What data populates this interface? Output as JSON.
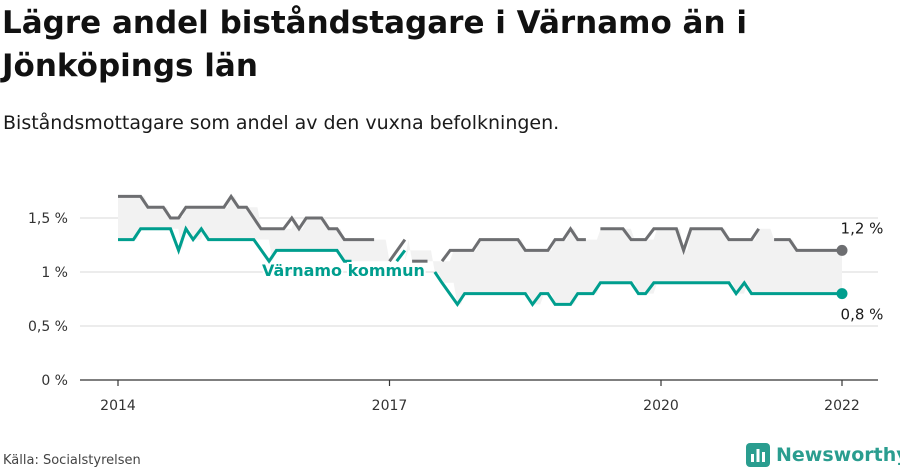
{
  "header": {
    "title": "Lägre andel biståndstagare i Värnamo än i Jönköpings län",
    "subtitle": "Biståndsmottagare som andel av den vuxna befolkningen."
  },
  "footer": {
    "source": "Källa: Socialstyrelsen",
    "brand_name": "Newsworthy",
    "brand_icon": "newsworthy-logo-icon"
  },
  "colors": {
    "lan": "#6d6e71",
    "varnamo": "#009e8e",
    "band": "#f2f2f2",
    "grid": "#d9d9d9"
  },
  "chart_data": {
    "type": "line",
    "title": "Lägre andel biståndstagare i Värnamo än i Jönköpings län",
    "subtitle": "Biståndsmottagare som andel av den vuxna befolkningen.",
    "xlabel": "",
    "ylabel": "",
    "ylim": [
      0,
      1.8
    ],
    "y_ticks": [
      {
        "value": 0,
        "label": "0 %"
      },
      {
        "value": 0.5,
        "label": "0,5 %"
      },
      {
        "value": 1,
        "label": "1 %"
      },
      {
        "value": 1.5,
        "label": "1,5 %"
      }
    ],
    "x_ticks": [
      {
        "value": 2014,
        "label": "2014"
      },
      {
        "value": 2017,
        "label": "2017"
      },
      {
        "value": 2020,
        "label": "2020"
      },
      {
        "value": 2022,
        "label": "2022"
      }
    ],
    "grid": true,
    "band_between_series": true,
    "series": [
      {
        "name": "",
        "color": "#6d6e71",
        "end_label": "1,2 %",
        "points": [
          [
            2014.0,
            1.7
          ],
          [
            2014.25,
            1.7
          ],
          [
            2014.33,
            1.6
          ],
          [
            2014.5,
            1.6
          ],
          [
            2014.58,
            1.5
          ],
          [
            2014.67,
            1.5
          ],
          [
            2014.75,
            1.6
          ],
          [
            2015.17,
            1.6
          ],
          [
            2015.25,
            1.7
          ],
          [
            2015.33,
            1.6
          ],
          [
            2015.42,
            1.6
          ],
          [
            2015.58,
            1.4
          ],
          [
            2015.83,
            1.4
          ],
          [
            2015.92,
            1.5
          ],
          [
            2016.0,
            1.4
          ],
          [
            2016.08,
            1.5
          ],
          [
            2016.25,
            1.5
          ],
          [
            2016.33,
            1.4
          ],
          [
            2016.42,
            1.4
          ],
          [
            2016.5,
            1.3
          ],
          [
            2016.83,
            1.3
          ],
          null,
          [
            2017.0,
            1.1
          ],
          [
            2017.17,
            1.3
          ],
          null,
          [
            2017.25,
            1.1
          ],
          [
            2017.42,
            1.1
          ],
          null,
          [
            2017.58,
            1.1
          ],
          [
            2017.67,
            1.2
          ],
          [
            2017.92,
            1.2
          ],
          [
            2018.0,
            1.3
          ],
          [
            2018.42,
            1.3
          ],
          [
            2018.5,
            1.2
          ],
          [
            2018.75,
            1.2
          ],
          [
            2018.83,
            1.3
          ],
          [
            2018.92,
            1.3
          ],
          [
            2019.0,
            1.4
          ],
          [
            2019.08,
            1.3
          ],
          [
            2019.17,
            1.3
          ],
          null,
          [
            2019.33,
            1.4
          ],
          [
            2019.58,
            1.4
          ],
          [
            2019.67,
            1.3
          ],
          [
            2019.83,
            1.3
          ],
          [
            2019.92,
            1.4
          ],
          [
            2020.17,
            1.4
          ],
          [
            2020.25,
            1.2
          ],
          [
            2020.33,
            1.4
          ],
          [
            2020.67,
            1.4
          ],
          [
            2020.75,
            1.3
          ],
          [
            2021.0,
            1.3
          ],
          [
            2021.08,
            1.4
          ],
          null,
          [
            2021.25,
            1.3
          ],
          [
            2021.42,
            1.3
          ],
          [
            2021.5,
            1.2
          ],
          [
            2022.0,
            1.2
          ]
        ]
      },
      {
        "name": "Värnamo kommun",
        "color": "#009e8e",
        "end_label": "0,8 %",
        "points": [
          [
            2014.0,
            1.3
          ],
          [
            2014.17,
            1.3
          ],
          [
            2014.25,
            1.4
          ],
          [
            2014.58,
            1.4
          ],
          [
            2014.67,
            1.2
          ],
          [
            2014.75,
            1.4
          ],
          [
            2014.83,
            1.3
          ],
          [
            2014.92,
            1.4
          ],
          [
            2015.0,
            1.3
          ],
          [
            2015.5,
            1.3
          ],
          [
            2015.67,
            1.1
          ],
          [
            2015.75,
            1.2
          ],
          [
            2016.42,
            1.2
          ],
          [
            2016.5,
            1.1
          ],
          [
            2016.58,
            1.1
          ],
          null,
          [
            2017.08,
            1.1
          ],
          [
            2017.17,
            1.2
          ],
          null,
          [
            2017.5,
            1.0
          ],
          [
            2017.58,
            0.9
          ],
          [
            2017.75,
            0.7
          ],
          [
            2017.83,
            0.8
          ],
          [
            2018.5,
            0.8
          ],
          [
            2018.58,
            0.7
          ],
          [
            2018.67,
            0.8
          ],
          [
            2018.75,
            0.8
          ],
          [
            2018.83,
            0.7
          ],
          [
            2019.0,
            0.7
          ],
          [
            2019.08,
            0.8
          ],
          [
            2019.25,
            0.8
          ],
          [
            2019.33,
            0.9
          ],
          [
            2019.67,
            0.9
          ],
          [
            2019.75,
            0.8
          ],
          [
            2019.83,
            0.8
          ],
          [
            2019.92,
            0.9
          ],
          [
            2020.75,
            0.9
          ],
          [
            2020.83,
            0.8
          ],
          [
            2020.92,
            0.9
          ],
          [
            2021.0,
            0.8
          ],
          [
            2022.0,
            0.8
          ]
        ]
      }
    ]
  }
}
